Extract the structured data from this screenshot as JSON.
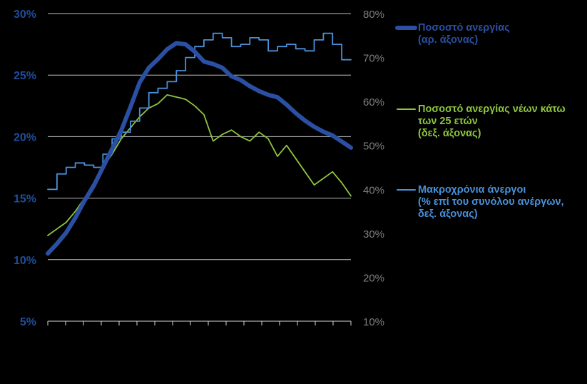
{
  "chart_data": {
    "type": "line",
    "left_axis": {
      "ticks": [
        "5%",
        "10%",
        "15%",
        "20%",
        "25%",
        "30%"
      ],
      "ylim": [
        5,
        30
      ]
    },
    "right_axis": {
      "ticks": [
        "10%",
        "20%",
        "30%",
        "40%",
        "50%",
        "60%",
        "70%",
        "80%"
      ],
      "ylim": [
        10,
        80
      ]
    },
    "grid": "horizontal",
    "legend_position": "right",
    "x_tick_count": 18,
    "series": [
      {
        "name": "Ποσοστό ανεργίας (αρ. άξονας)",
        "legend_lines": [
          "Ποσοστό ανεργίας",
          "(αρ. άξονας)"
        ],
        "axis": "left",
        "color": "#2B4FA3",
        "values": [
          10.5,
          11.3,
          12.2,
          13.4,
          14.8,
          16.0,
          17.5,
          19.0,
          20.5,
          22.4,
          24.4,
          25.6,
          26.3,
          27.1,
          27.6,
          27.5,
          26.9,
          26.1,
          25.9,
          25.6,
          24.9,
          24.6,
          24.1,
          23.7,
          23.4,
          23.2,
          22.6,
          21.9,
          21.3,
          20.8,
          20.4,
          20.1,
          19.6,
          19.1
        ]
      },
      {
        "name": "Ποσοστό ανεργίας νέων κάτω των 25 ετών (δεξ. άξονας)",
        "legend_lines": [
          "Ποσοστό ανεργίας νέων κάτω",
          "των 25 ετών",
          "(δεξ. άξονας)"
        ],
        "axis": "right",
        "color": "#8DC63F",
        "values": [
          29.5,
          31.0,
          32.5,
          35.0,
          38.0,
          41.5,
          45.0,
          48.0,
          51.5,
          54.0,
          56.5,
          58.5,
          59.5,
          61.5,
          61.0,
          60.5,
          59.0,
          57.0,
          51.0,
          52.5,
          53.5,
          52.0,
          51.0,
          53.0,
          51.5,
          47.5,
          50.0,
          47.0,
          44.0,
          41.0,
          42.5,
          44.0,
          41.5,
          38.5
        ]
      },
      {
        "name": "Μακροχρόνια άνεργοι (% επί του συνόλου ανέργων, δεξ. άξονας)",
        "legend_lines": [
          "Μακροχρόνια άνεργοι",
          "(% επί του συνόλου ανέργων,",
          "δεξ. άξονας)"
        ],
        "axis": "right",
        "color": "#4A90D9",
        "values": [
          40.0,
          43.5,
          45.0,
          46.0,
          45.5,
          45.0,
          48.0,
          51.5,
          53.0,
          55.5,
          58.5,
          62.0,
          63.0,
          64.5,
          67.0,
          70.0,
          72.5,
          74.0,
          75.5,
          74.5,
          72.5,
          73.0,
          74.5,
          74.0,
          71.5,
          72.5,
          73.0,
          72.0,
          71.5,
          74.0,
          75.5,
          73.0,
          69.5,
          69.5
        ]
      }
    ]
  }
}
